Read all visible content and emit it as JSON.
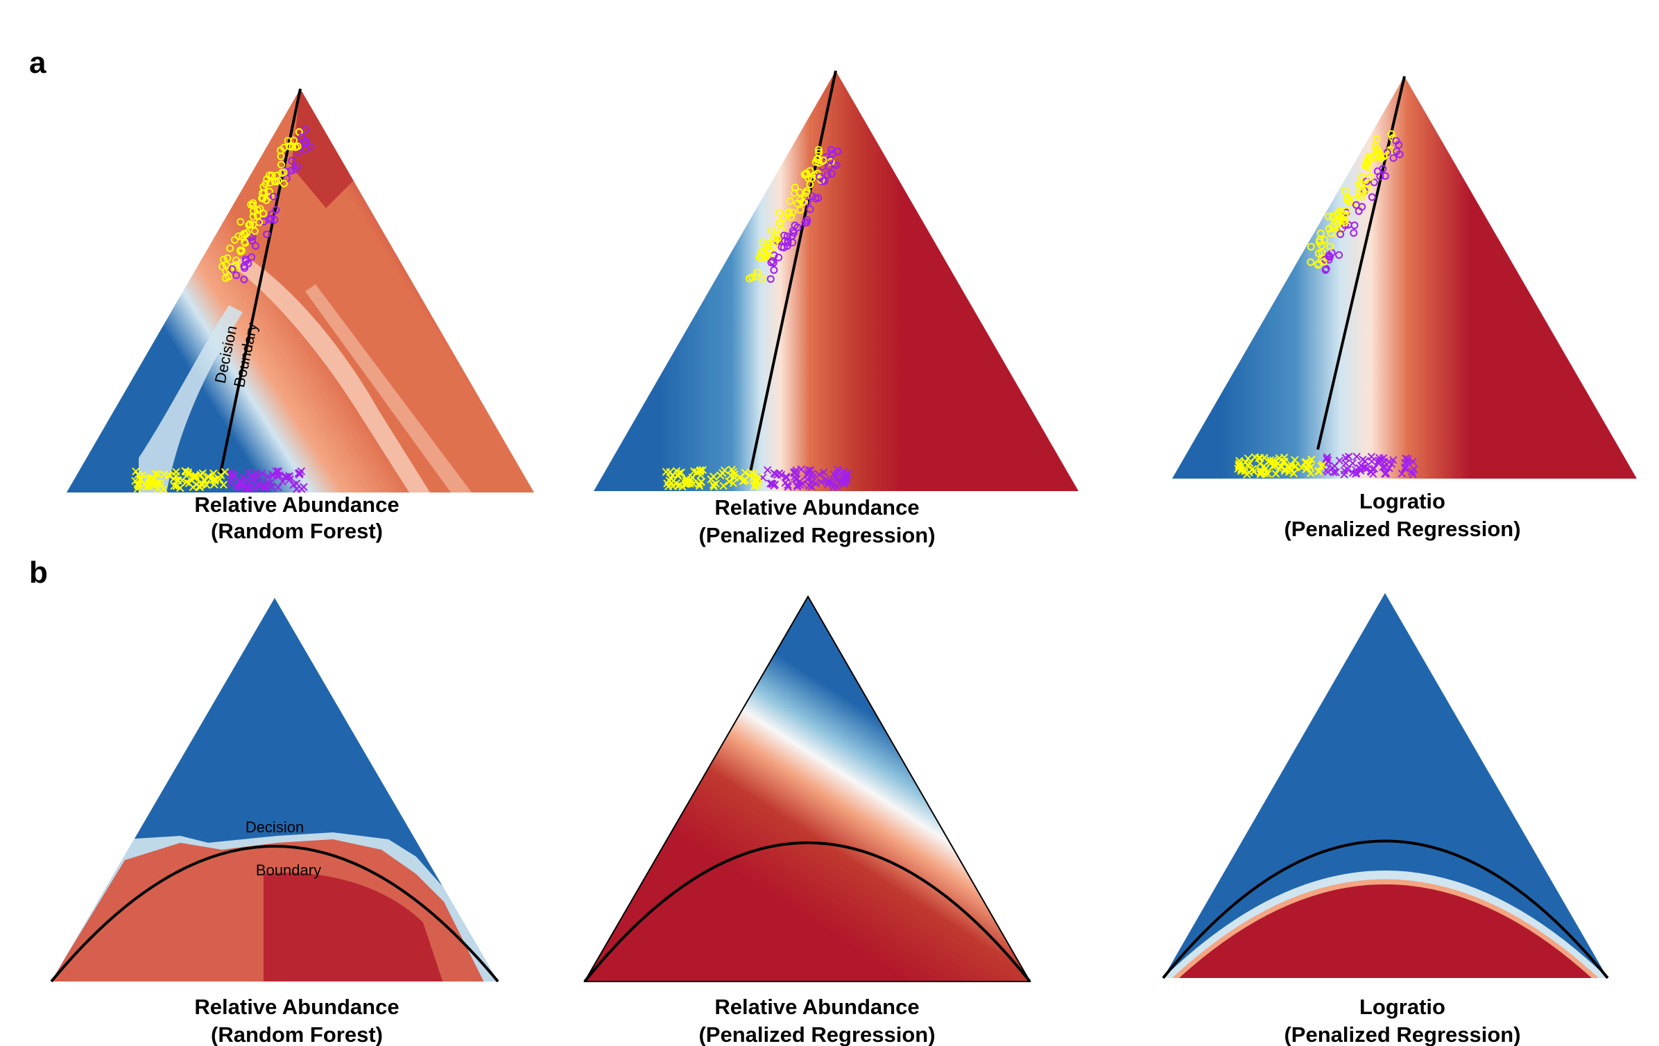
{
  "panels": {
    "a": {
      "label": "a"
    },
    "b": {
      "label": "b"
    }
  },
  "captions": {
    "rf": {
      "line1": "Relative Abundance",
      "line2": "(Random Forest)"
    },
    "pr": {
      "line1": "Relative Abundance",
      "line2": "(Penalized Regression)"
    },
    "lr": {
      "line1": "Logratio",
      "line2": "(Penalized Regression)"
    }
  },
  "annotations": {
    "decision": "Decision",
    "boundary": "Boundary"
  },
  "colors": {
    "blue": "#2166ac",
    "light_blue": "#d1e5f0",
    "white": "#f7f7f7",
    "salmon": "#e0714f",
    "red": "#b2182b",
    "yellow": "#ffff00",
    "purple": "#a020f0",
    "boundary_line": "#000000"
  },
  "point_markers": {
    "circle": "o",
    "cross": "x"
  }
}
